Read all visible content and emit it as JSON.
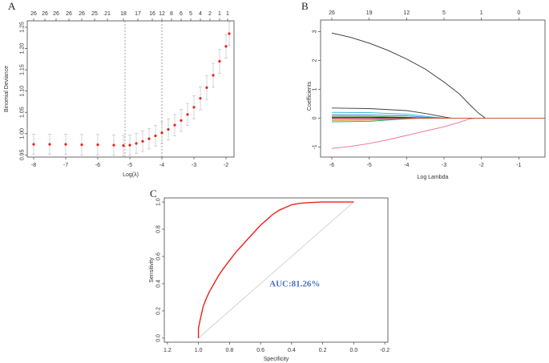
{
  "panels": {
    "a": {
      "letter": "A"
    },
    "b": {
      "letter": "B"
    },
    "c": {
      "letter": "C"
    }
  },
  "chart_data": [
    {
      "type": "line",
      "xlabel": "Log(λ)",
      "ylabel": "Binomial Deviance",
      "xlim": [
        -8.2,
        -1.75
      ],
      "ylim": [
        0.945,
        1.265
      ],
      "x_ticks": [
        -8,
        -7,
        -6,
        -5,
        -4,
        -3,
        -2
      ],
      "y_ticks": [
        0.95,
        1.0,
        1.05,
        1.1,
        1.15,
        1.2,
        1.25
      ],
      "y_tick_labels": [
        "0.95",
        "1.00",
        "1.05",
        "1.10",
        "1.15",
        "1.20",
        "1.25"
      ],
      "top_axis": {
        "positions": [
          -8.0,
          -7.65,
          -7.3,
          -6.9,
          -6.5,
          -6.1,
          -5.7,
          -5.2,
          -4.75,
          -4.3,
          -4.0,
          -3.7,
          -3.4,
          -3.1,
          -2.8,
          -2.5,
          -2.2,
          -1.95
        ],
        "labels": [
          "26",
          "26",
          "26",
          "26",
          "26",
          "25",
          "21",
          "18",
          "17",
          "16",
          "12",
          "8",
          "6",
          "5",
          "4",
          "2",
          "1",
          "1"
        ]
      },
      "vlines": [
        -5.15,
        -4.0
      ],
      "series": [
        {
          "x": [
            -8.0,
            -7.5,
            -7.0,
            -6.5,
            -6.0,
            -5.5,
            -5.2,
            -5.0,
            -4.8,
            -4.6,
            -4.4,
            -4.2,
            -4.0,
            -3.8,
            -3.6,
            -3.4,
            -3.2,
            -3.0,
            -2.8,
            -2.6,
            -2.4,
            -2.2,
            -2.0,
            -1.9
          ],
          "y": [
            0.975,
            0.975,
            0.975,
            0.974,
            0.974,
            0.973,
            0.972,
            0.973,
            0.977,
            0.982,
            0.988,
            0.995,
            1.002,
            1.01,
            1.02,
            1.031,
            1.045,
            1.062,
            1.083,
            1.108,
            1.137,
            1.17,
            1.205,
            1.235
          ],
          "err": [
            0.024,
            0.024,
            0.024,
            0.024,
            0.024,
            0.024,
            0.024,
            0.024,
            0.024,
            0.024,
            0.024,
            0.024,
            0.025,
            0.025,
            0.025,
            0.026,
            0.026,
            0.027,
            0.027,
            0.028,
            0.028,
            0.028,
            0.028,
            0.028
          ]
        }
      ],
      "point_color": "#e8231a",
      "errorbar_color": "#b8b8b8"
    },
    {
      "type": "line",
      "xlabel": "Log Lambda",
      "ylabel": "Coefficients",
      "xlim": [
        -6.3,
        -0.3
      ],
      "ylim": [
        -1.35,
        3.4
      ],
      "x_ticks": [
        -6,
        -5,
        -4,
        -3,
        -2,
        -1
      ],
      "y_ticks": [
        -1,
        0,
        1,
        2,
        3
      ],
      "top_axis": {
        "positions": [
          -6,
          -5,
          -4,
          -3,
          -2,
          -1
        ],
        "labels": [
          "26",
          "19",
          "12",
          "5",
          "1",
          "0"
        ]
      },
      "series": [
        {
          "color": "#303030",
          "x": [
            -6.0,
            -5.5,
            -5.0,
            -4.5,
            -4.0,
            -3.5,
            -3.0,
            -2.6,
            -2.3,
            -2.1,
            -1.9
          ],
          "y": [
            2.95,
            2.8,
            2.6,
            2.35,
            2.05,
            1.7,
            1.25,
            0.85,
            0.45,
            0.2,
            0.0
          ]
        },
        {
          "color": "#f06b8c",
          "x": [
            -6.0,
            -5.5,
            -5.0,
            -4.5,
            -4.0,
            -3.5,
            -3.0,
            -2.6,
            -2.35,
            -2.2
          ],
          "y": [
            -1.05,
            -0.98,
            -0.88,
            -0.75,
            -0.6,
            -0.45,
            -0.3,
            -0.15,
            -0.04,
            0.0
          ]
        },
        {
          "color": "#404040",
          "x": [
            -6.0,
            -5.0,
            -4.0,
            -3.5,
            -3.0,
            -2.8
          ],
          "y": [
            0.35,
            0.33,
            0.26,
            0.16,
            0.04,
            0.0
          ]
        },
        {
          "color": "#1fb5c9",
          "x": [
            -6.0,
            -5.0,
            -4.0,
            -3.5,
            -3.0
          ],
          "y": [
            0.2,
            0.19,
            0.14,
            0.06,
            0.0
          ]
        },
        {
          "color": "#3a6ee8",
          "x": [
            -6.0,
            -5.0,
            -4.0,
            -3.5,
            -3.1
          ],
          "y": [
            0.12,
            0.11,
            0.08,
            0.03,
            0.0
          ]
        },
        {
          "color": "#2ca02c",
          "x": [
            -6.0,
            -5.0,
            -4.0,
            -3.5
          ],
          "y": [
            0.07,
            0.06,
            0.03,
            0.0
          ]
        },
        {
          "color": "#9b59b6",
          "x": [
            -6.0,
            -5.0,
            -4.2,
            -3.7
          ],
          "y": [
            -0.04,
            -0.04,
            -0.02,
            0.0
          ]
        },
        {
          "color": "#e08e0b",
          "x": [
            -6.0,
            -5.0,
            -4.0,
            -3.6
          ],
          "y": [
            -0.08,
            -0.07,
            -0.03,
            0.0
          ]
        },
        {
          "color": "#16a085",
          "x": [
            -6.0,
            -5.0,
            -4.3,
            -3.9
          ],
          "y": [
            -0.13,
            -0.11,
            -0.05,
            0.0
          ]
        },
        {
          "color": "#111111",
          "x": [
            -6.0,
            -5.0,
            -4.0,
            -3.4
          ],
          "y": [
            0.03,
            0.03,
            0.015,
            0.0
          ]
        },
        {
          "color": "#c0392b",
          "x": [
            -6.0,
            -0.3
          ],
          "y": [
            0.0,
            0.0
          ]
        }
      ]
    },
    {
      "type": "line",
      "xlabel": "Specificity",
      "ylabel": "Sensitivity",
      "xlim": [
        1.22,
        -0.22
      ],
      "ylim": [
        -0.03,
        1.03
      ],
      "x_ticks": [
        1.2,
        1.0,
        0.8,
        0.6,
        0.4,
        0.2,
        0.0,
        -0.2
      ],
      "x_tick_labels": [
        "1.2",
        "1.0",
        "0.8",
        "0.6",
        "0.4",
        "0.2",
        "0.0",
        "-0.2"
      ],
      "y_ticks": [
        0.0,
        0.2,
        0.4,
        0.6,
        0.8,
        1.0
      ],
      "y_tick_labels": [
        "0.0",
        "0.2",
        "0.4",
        "0.6",
        "0.8",
        "1.0"
      ],
      "annotation": "AUC:81.26%",
      "diagonal": {
        "x": [
          1.0,
          0.0
        ],
        "y": [
          0.0,
          1.0
        ],
        "color": "#c8c8c8"
      },
      "series": [
        {
          "color": "#e8231a",
          "x": [
            1.0,
            1.0,
            0.99,
            0.98,
            0.97,
            0.95,
            0.93,
            0.9,
            0.87,
            0.84,
            0.8,
            0.76,
            0.72,
            0.68,
            0.64,
            0.6,
            0.56,
            0.52,
            0.48,
            0.44,
            0.4,
            0.35,
            0.3,
            0.2,
            0.1,
            0.0
          ],
          "y": [
            0.0,
            0.07,
            0.13,
            0.18,
            0.23,
            0.29,
            0.34,
            0.4,
            0.46,
            0.51,
            0.57,
            0.63,
            0.68,
            0.73,
            0.78,
            0.83,
            0.87,
            0.91,
            0.94,
            0.96,
            0.98,
            0.99,
            0.995,
            1.0,
            1.0,
            1.0
          ]
        }
      ]
    }
  ]
}
